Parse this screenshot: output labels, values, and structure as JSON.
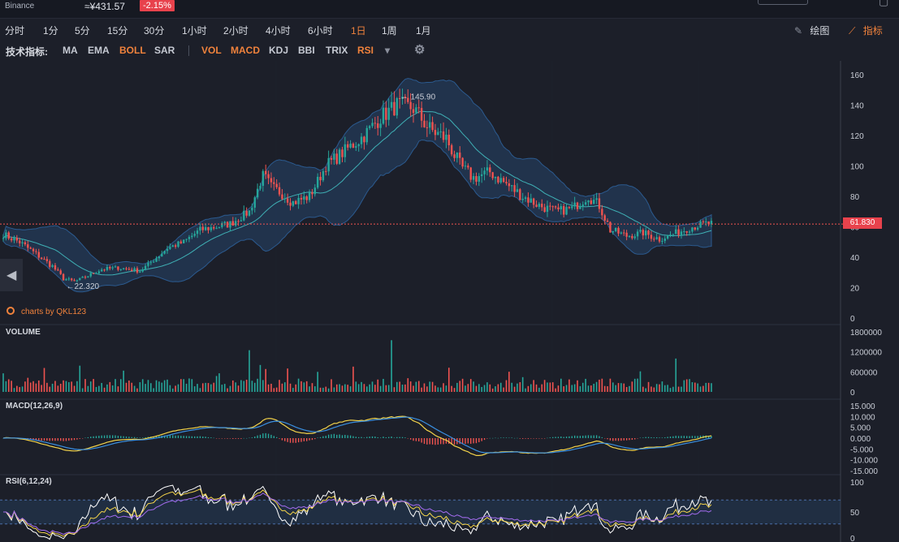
{
  "ticker": {
    "exchange": "Binance",
    "price": "≈¥431.57",
    "change": "-2.15%"
  },
  "timeframes": [
    "分时",
    "1分",
    "5分",
    "15分",
    "30分",
    "1小时",
    "2小时",
    "4小时",
    "6小时",
    "1日",
    "1周",
    "1月"
  ],
  "active_timeframe": "1日",
  "tools": {
    "draw": "绘图",
    "indicators": "指标"
  },
  "indicator_bar": {
    "label": "技术指标:",
    "main": [
      {
        "name": "MA",
        "on": false
      },
      {
        "name": "EMA",
        "on": false
      },
      {
        "name": "BOLL",
        "on": true
      },
      {
        "name": "SAR",
        "on": false
      }
    ],
    "sub": [
      {
        "name": "VOL",
        "on": true
      },
      {
        "name": "MACD",
        "on": true
      },
      {
        "name": "KDJ",
        "on": false
      },
      {
        "name": "BBI",
        "on": false
      },
      {
        "name": "TRIX",
        "on": false
      },
      {
        "name": "RSI",
        "on": true
      }
    ]
  },
  "branding": "charts by QKL123",
  "colors": {
    "up": "#26a69a",
    "down": "#ef5350",
    "accent": "#f0823c",
    "band": "#2b5a8f",
    "mid": "#3fb0b5",
    "macd_dif": "#f3d34a",
    "macd_dea": "#3a8fe0",
    "rsi6": "#ffffff",
    "rsi12": "#f3d34a",
    "rsi24": "#a46cf0"
  },
  "chart_data": {
    "type": "candlestick",
    "current_price": 61.83,
    "current_price_label": "61.830",
    "high_label": "145.90",
    "low_label": "22.320",
    "high": 145.9,
    "low": 22.32,
    "price_axis": [
      "160",
      "140",
      "120",
      "100",
      "80",
      "60",
      "40",
      "20",
      "0"
    ],
    "price_ylim": [
      0,
      160
    ],
    "close_path": [
      [
        0,
        55
      ],
      [
        6,
        50
      ],
      [
        12,
        42
      ],
      [
        18,
        34
      ],
      [
        22,
        26
      ],
      [
        26,
        24
      ],
      [
        30,
        27
      ],
      [
        36,
        32
      ],
      [
        42,
        33
      ],
      [
        50,
        31
      ],
      [
        55,
        38
      ],
      [
        60,
        46
      ],
      [
        66,
        50
      ],
      [
        72,
        58
      ],
      [
        78,
        60
      ],
      [
        83,
        62
      ],
      [
        90,
        70
      ],
      [
        95,
        94
      ],
      [
        98,
        86
      ],
      [
        102,
        82
      ],
      [
        106,
        76
      ],
      [
        112,
        80
      ],
      [
        118,
        100
      ],
      [
        125,
        110
      ],
      [
        132,
        120
      ],
      [
        138,
        132
      ],
      [
        144,
        140
      ],
      [
        150,
        138
      ],
      [
        156,
        124
      ],
      [
        162,
        118
      ],
      [
        167,
        100
      ],
      [
        172,
        92
      ],
      [
        178,
        96
      ],
      [
        184,
        88
      ],
      [
        190,
        80
      ],
      [
        196,
        74
      ],
      [
        202,
        70
      ],
      [
        208,
        72
      ],
      [
        214,
        80
      ],
      [
        218,
        74
      ],
      [
        222,
        58
      ],
      [
        228,
        54
      ],
      [
        234,
        56
      ],
      [
        240,
        52
      ],
      [
        246,
        56
      ],
      [
        252,
        60
      ],
      [
        257,
        62
      ]
    ],
    "volume": {
      "title": "VOLUME",
      "axis": [
        "1800000",
        "1200000",
        "600000",
        "0"
      ],
      "ylim": [
        0,
        1800000
      ]
    },
    "macd": {
      "title": "MACD(12,26,9)",
      "axis": [
        "15.000",
        "10.000",
        "5.000",
        "0.000",
        "-5.000",
        "-10.000",
        "-15.000"
      ],
      "ylim": [
        -15,
        15
      ]
    },
    "rsi": {
      "title": "RSI(6,12,24)",
      "axis": [
        "100",
        "50",
        "0"
      ],
      "ylim": [
        0,
        100
      ]
    }
  }
}
